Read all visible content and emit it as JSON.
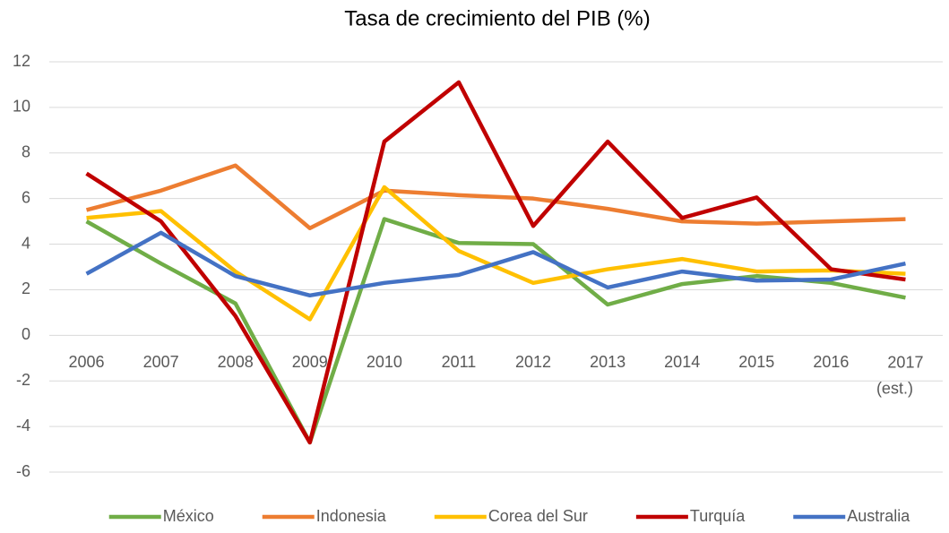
{
  "chart_data": {
    "type": "line",
    "title": "Tasa de crecimiento del PIB (%)",
    "categories": [
      "2006",
      "2007",
      "2008",
      "2009",
      "2010",
      "2011",
      "2012",
      "2013",
      "2014",
      "2015",
      "2016",
      "2017 (est.)"
    ],
    "series": [
      {
        "name": "México",
        "color": "#70ad47",
        "values": [
          5.0,
          3.15,
          1.4,
          -4.7,
          5.1,
          4.05,
          4.0,
          1.35,
          2.25,
          2.6,
          2.3,
          1.65
        ]
      },
      {
        "name": "Indonesia",
        "color": "#ed7d31",
        "values": [
          5.5,
          6.35,
          7.45,
          4.7,
          6.35,
          6.15,
          6.0,
          5.55,
          5.0,
          4.9,
          5.0,
          5.1
        ]
      },
      {
        "name": "Corea del Sur",
        "color": "#ffc000",
        "values": [
          5.15,
          5.45,
          2.8,
          0.7,
          6.5,
          3.7,
          2.3,
          2.9,
          3.35,
          2.8,
          2.85,
          2.7
        ]
      },
      {
        "name": "Turquía",
        "color": "#c00000",
        "values": [
          7.1,
          5.0,
          0.85,
          -4.7,
          8.5,
          11.1,
          4.8,
          8.5,
          5.15,
          6.05,
          2.9,
          2.45
        ]
      },
      {
        "name": "Australia",
        "color": "#4472c4",
        "values": [
          2.7,
          4.5,
          2.6,
          1.75,
          2.3,
          2.65,
          3.65,
          2.1,
          2.8,
          2.4,
          2.45,
          3.15
        ]
      }
    ],
    "ylim": [
      -6,
      12
    ],
    "yticks": [
      -6,
      -4,
      -2,
      0,
      2,
      4,
      6,
      8,
      10,
      12
    ],
    "grid": true,
    "legend": "bottom"
  }
}
